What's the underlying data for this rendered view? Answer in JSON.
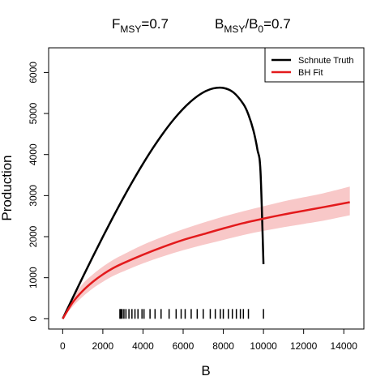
{
  "chart_data": {
    "type": "line",
    "title": {
      "left": {
        "main": "F",
        "sub": "MSY",
        "rest": "=0.7"
      },
      "right": {
        "main1": "B",
        "sub1": "MSY",
        "slash": "/B",
        "sub2": "0",
        "rest": "=0.7"
      }
    },
    "xlabel": "B",
    "ylabel": "Production",
    "xlim": [
      -700,
      15000
    ],
    "ylim": [
      -250,
      6600
    ],
    "xticks": [
      0,
      2000,
      4000,
      6000,
      8000,
      10000,
      12000,
      14000
    ],
    "yticks": [
      0,
      1000,
      2000,
      3000,
      4000,
      5000,
      6000
    ],
    "legend": {
      "position": "top-right",
      "entries": [
        {
          "label": "Schnute Truth",
          "color": "#000000"
        },
        {
          "label": "BH Fit",
          "color": "#e31a1c"
        }
      ]
    },
    "series": [
      {
        "name": "Schnute Truth",
        "color": "#000000",
        "x": [
          0,
          500,
          1000,
          1500,
          2000,
          2500,
          3000,
          3500,
          4000,
          4500,
          5000,
          5500,
          6000,
          6500,
          7000,
          7500,
          8000,
          8500,
          9000,
          9250,
          9500,
          9700,
          9850,
          10000
        ],
        "y": [
          0,
          509,
          1014,
          1510,
          1996,
          2469,
          2925,
          3362,
          3776,
          4163,
          4518,
          4838,
          5115,
          5343,
          5513,
          5612,
          5623,
          5515,
          5229,
          4973,
          4584,
          4117,
          3599,
          1330
        ]
      },
      {
        "name": "BH Fit",
        "color": "#e31a1c",
        "x": [
          0,
          500,
          1000,
          1500,
          2000,
          2500,
          3000,
          4000,
          5000,
          6000,
          7000,
          8000,
          9000,
          10000,
          11000,
          12000,
          13000,
          14300
        ],
        "y": [
          0,
          400,
          680,
          900,
          1080,
          1230,
          1350,
          1560,
          1750,
          1920,
          2060,
          2200,
          2330,
          2440,
          2540,
          2630,
          2720,
          2840
        ]
      }
    ],
    "band": {
      "color": "#f8c8c8",
      "x": [
        0,
        500,
        1000,
        1500,
        2000,
        2500,
        3000,
        4000,
        5000,
        6000,
        7000,
        8000,
        9000,
        10000,
        11000,
        12000,
        13000,
        14300
      ],
      "lower": [
        0,
        300,
        540,
        740,
        900,
        1040,
        1150,
        1350,
        1520,
        1670,
        1800,
        1920,
        2040,
        2140,
        2230,
        2310,
        2390,
        2520
      ],
      "upper": [
        0,
        500,
        850,
        1080,
        1270,
        1430,
        1560,
        1800,
        2000,
        2180,
        2340,
        2490,
        2620,
        2740,
        2860,
        2960,
        3060,
        3220
      ]
    },
    "rug": [
      2850,
      2900,
      2960,
      3050,
      3150,
      3300,
      3450,
      3600,
      3750,
      3950,
      4050,
      4350,
      4600,
      4900,
      5300,
      5650,
      5900,
      6100,
      6400,
      6700,
      7000,
      7350,
      7600,
      7850,
      8000,
      8250,
      8450,
      8650,
      8850,
      9000,
      9250,
      10000
    ],
    "grid": false
  }
}
